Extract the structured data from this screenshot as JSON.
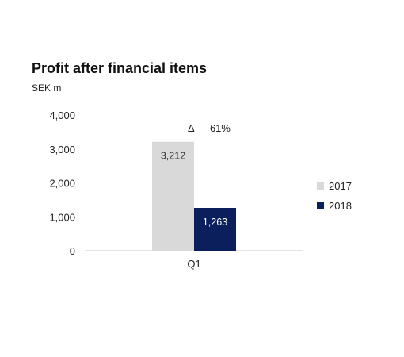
{
  "chart_data": {
    "type": "bar",
    "title": "Profit after financial items",
    "ylabel": "SEK m",
    "xlabel": "",
    "categories": [
      "Q1"
    ],
    "yticks": [
      "0",
      "1,000",
      "2,000",
      "3,000",
      "4,000"
    ],
    "ylim": [
      0,
      4000
    ],
    "grid": false,
    "legend": "right",
    "series": [
      {
        "name": "2017",
        "values": [
          3212
        ],
        "value_labels": [
          "3,212"
        ],
        "color": "#d9d9d9",
        "label_color": "#333333"
      },
      {
        "name": "2018",
        "values": [
          1263
        ],
        "value_labels": [
          "1,263"
        ],
        "color": "#0a1f5c",
        "label_color": "#ffffff"
      }
    ],
    "annotation": {
      "symbol": "Δ",
      "text": "- 61%"
    }
  }
}
